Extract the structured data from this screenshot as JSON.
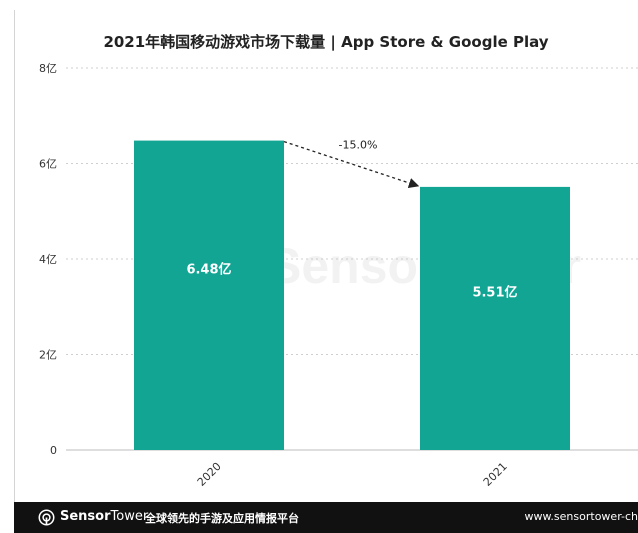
{
  "chart_data": {
    "type": "bar",
    "title": "2021年韩国移动游戏市场下载量 | App Store & Google Play",
    "categories": [
      "2020",
      "2021"
    ],
    "values": [
      6.48,
      5.51
    ],
    "data_labels": [
      "6.48亿",
      "5.51亿"
    ],
    "ylim": [
      0,
      8
    ],
    "yticks": [
      0,
      2,
      4,
      6,
      8
    ],
    "ytick_labels": [
      "0",
      "2亿",
      "4亿",
      "6亿",
      "8亿"
    ],
    "xlabel": "",
    "ylabel": "",
    "grid": true,
    "bar_color": "#12a594",
    "annotation": {
      "text": "-15.0%",
      "from": "2020",
      "to": "2021"
    },
    "watermark": "SensorTower"
  },
  "footer": {
    "brand_bold": "Sensor",
    "brand_rest": "Tower",
    "slogan": "全球领先的手游及应用情报平台",
    "url": "www.sensortower-ch"
  }
}
